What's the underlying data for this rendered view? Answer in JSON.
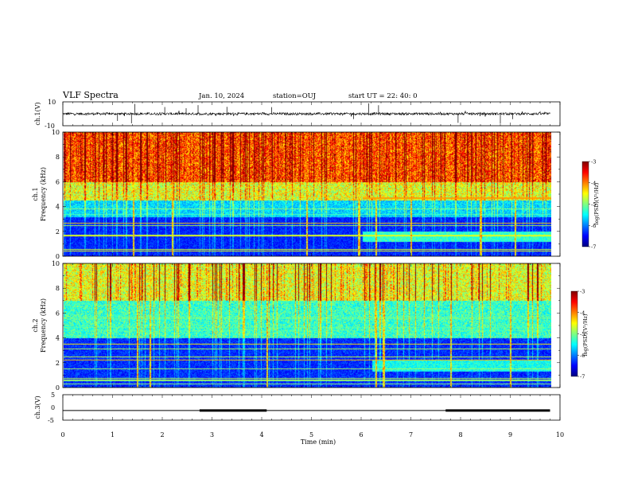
{
  "header": {
    "title": "VLF Spectra",
    "date": "Jan. 10, 2024",
    "station": "station=OUJ",
    "start": "start UT = 22: 40: 0"
  },
  "chart_data": [
    {
      "type": "line",
      "name": "ch1-waveform",
      "ylabel": "ch.1(V)",
      "ylim": [
        -10,
        10
      ],
      "ytick_labels": [
        "10",
        "-10"
      ],
      "x_range_min": [
        0,
        9.8
      ],
      "baseline_V": 0,
      "noise_amplitude_V": 1,
      "impulse_times_min": [
        1.1,
        1.38,
        1.45,
        2.05,
        2.48,
        2.72,
        3.3,
        4.2,
        5.85,
        6.15,
        6.35,
        7.95,
        8.8,
        9.05
      ]
    },
    {
      "type": "heatmap",
      "name": "ch1-spectrogram",
      "ylabel_line1": "ch.1",
      "ylabel_line2": "Frequency (kHz)",
      "xlim": [
        0,
        10
      ],
      "ylim": [
        0,
        10
      ],
      "ytick_labels": [
        "0",
        "2",
        "4",
        "6",
        "8",
        "10"
      ],
      "colorbar": {
        "label": "log(PSD)(V²/Hz)",
        "range": [
          -7,
          -3
        ],
        "tick_labels": [
          "-3",
          "-4",
          "-5",
          "-6",
          "-7"
        ]
      },
      "noisy_band_top_kHz": 4.5,
      "quiet_band_top_kHz": 3.2,
      "emission_line_kHz": 4.7,
      "emission_line_start_min": 6.0,
      "wideband_spike_times_min": [
        1.42,
        2.2,
        4.9,
        5.95,
        6.3,
        7.0,
        8.4,
        9.1
      ]
    },
    {
      "type": "heatmap",
      "name": "ch2-spectrogram",
      "ylabel_line1": "ch.2",
      "ylabel_line2": "Frequency (kHz)",
      "xlim": [
        0,
        10
      ],
      "ylim": [
        0,
        10
      ],
      "ytick_labels": [
        "0",
        "2",
        "4",
        "6",
        "8",
        "10"
      ],
      "colorbar": {
        "label": "log(PSD)(V²/Hz)",
        "range": [
          -7,
          -3
        ],
        "tick_labels": [
          "-3",
          "-4",
          "-5",
          "-6",
          "-7"
        ]
      },
      "quiet_band_top_kHz": 4.0,
      "wideband_spike_times_min": [
        1.5,
        1.75,
        4.1,
        6.3,
        6.45,
        7.8,
        9.0
      ]
    },
    {
      "type": "line",
      "name": "ch3-monitor",
      "ylabel": "ch.3(V)",
      "ylim": [
        -5,
        5
      ],
      "ytick_labels": [
        "5",
        "0",
        "-5"
      ],
      "xlabel": "Time (min)",
      "x_tick_labels": [
        "0",
        "1",
        "2",
        "3",
        "4",
        "5",
        "6",
        "7",
        "8",
        "9",
        "10"
      ],
      "level_V": -1.2,
      "x_range_min": [
        0,
        9.8
      ],
      "thick_segments_min": [
        [
          2.75,
          4.1
        ],
        [
          7.7,
          9.8
        ]
      ]
    }
  ]
}
